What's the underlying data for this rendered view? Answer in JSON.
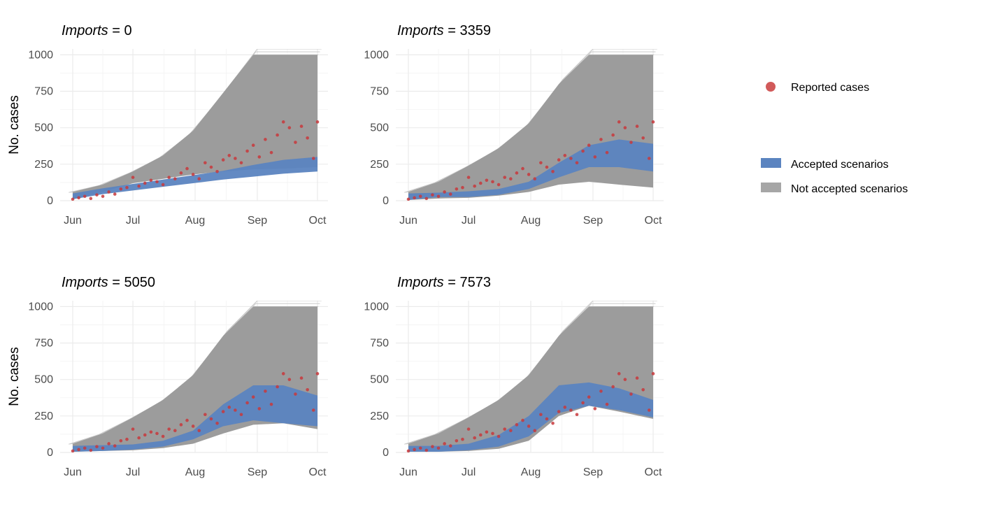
{
  "chart_data": [
    {
      "type": "area",
      "title": "= 0",
      "title_var": "Imports",
      "ylabel": "No. cases",
      "xlabel": "",
      "x_ticks": [
        "Jun",
        "Jul",
        "Aug",
        "Sep",
        "Oct"
      ],
      "ylim": [
        0,
        1000
      ],
      "y_ticks": [
        0,
        250,
        500,
        750,
        1000
      ],
      "grid": true,
      "series": [
        {
          "name": "Not accepted scenarios",
          "type": "band",
          "x": [
            0,
            15,
            30,
            45,
            60,
            75,
            90,
            105,
            122
          ],
          "lower": [
            10,
            60,
            120,
            150,
            180,
            200,
            215,
            220,
            230
          ],
          "upper": [
            60,
            110,
            200,
            310,
            480,
            740,
            1000,
            1000,
            1000
          ]
        },
        {
          "name": "Accepted scenarios",
          "type": "band",
          "x": [
            0,
            15,
            30,
            45,
            60,
            75,
            90,
            105,
            122
          ],
          "lower": [
            10,
            45,
            70,
            95,
            120,
            145,
            165,
            185,
            200
          ],
          "upper": [
            50,
            85,
            115,
            145,
            175,
            205,
            245,
            280,
            300
          ]
        },
        {
          "name": "Reported cases",
          "type": "scatter",
          "x": [
            0,
            3,
            6,
            9,
            12,
            15,
            18,
            21,
            24,
            27,
            30,
            33,
            36,
            39,
            42,
            45,
            48,
            51,
            54,
            57,
            60,
            63,
            66,
            69,
            72,
            75,
            78,
            81,
            84,
            87,
            90,
            93,
            96,
            99,
            102,
            105,
            108,
            111,
            114,
            117,
            120,
            122
          ],
          "y": [
            10,
            20,
            30,
            15,
            40,
            30,
            60,
            45,
            80,
            90,
            160,
            100,
            120,
            140,
            130,
            110,
            160,
            150,
            190,
            220,
            180,
            150,
            260,
            230,
            200,
            280,
            310,
            290,
            260,
            340,
            380,
            300,
            420,
            330,
            450,
            540,
            500,
            400,
            510,
            430,
            290,
            540
          ]
        }
      ]
    },
    {
      "type": "area",
      "title": "= 3359",
      "title_var": "Imports",
      "ylabel": "",
      "xlabel": "",
      "x_ticks": [
        "Jun",
        "Jul",
        "Aug",
        "Sep",
        "Oct"
      ],
      "ylim": [
        0,
        1000
      ],
      "y_ticks": [
        0,
        250,
        500,
        750,
        1000
      ],
      "grid": true,
      "series": [
        {
          "name": "Not accepted scenarios",
          "type": "band",
          "x": [
            0,
            15,
            30,
            45,
            60,
            75,
            90,
            105,
            122
          ],
          "lower": [
            5,
            15,
            20,
            35,
            60,
            110,
            130,
            110,
            90
          ],
          "upper": [
            60,
            130,
            240,
            360,
            530,
            800,
            1000,
            1000,
            1000
          ]
        },
        {
          "name": "Accepted scenarios",
          "type": "band",
          "x": [
            0,
            15,
            30,
            45,
            60,
            75,
            90,
            105,
            122
          ],
          "lower": [
            5,
            25,
            25,
            40,
            80,
            160,
            230,
            230,
            200
          ],
          "upper": [
            50,
            55,
            65,
            80,
            130,
            260,
            380,
            420,
            390
          ]
        },
        {
          "name": "Reported cases",
          "type": "scatter",
          "x": [
            0,
            3,
            6,
            9,
            12,
            15,
            18,
            21,
            24,
            27,
            30,
            33,
            36,
            39,
            42,
            45,
            48,
            51,
            54,
            57,
            60,
            63,
            66,
            69,
            72,
            75,
            78,
            81,
            84,
            87,
            90,
            93,
            96,
            99,
            102,
            105,
            108,
            111,
            114,
            117,
            120,
            122
          ],
          "y": [
            10,
            20,
            30,
            15,
            40,
            30,
            60,
            45,
            80,
            90,
            160,
            100,
            120,
            140,
            130,
            110,
            160,
            150,
            190,
            220,
            180,
            150,
            260,
            230,
            200,
            280,
            310,
            290,
            260,
            340,
            380,
            300,
            420,
            330,
            450,
            540,
            500,
            400,
            510,
            430,
            290,
            540
          ]
        }
      ]
    },
    {
      "type": "area",
      "title": "= 5050",
      "title_var": "Imports",
      "ylabel": "No. cases",
      "xlabel": "",
      "x_ticks": [
        "Jun",
        "Jul",
        "Aug",
        "Sep",
        "Oct"
      ],
      "ylim": [
        0,
        1000
      ],
      "y_ticks": [
        0,
        250,
        500,
        750,
        1000
      ],
      "grid": true,
      "series": [
        {
          "name": "Not accepted scenarios",
          "type": "band",
          "x": [
            0,
            15,
            30,
            45,
            60,
            75,
            90,
            105,
            122
          ],
          "lower": [
            5,
            10,
            15,
            30,
            60,
            130,
            190,
            200,
            160
          ],
          "upper": [
            60,
            130,
            240,
            360,
            530,
            800,
            1000,
            1000,
            1000
          ]
        },
        {
          "name": "Accepted scenarios",
          "type": "band",
          "x": [
            0,
            15,
            30,
            45,
            60,
            75,
            90,
            105,
            122
          ],
          "lower": [
            5,
            10,
            20,
            40,
            90,
            180,
            220,
            200,
            180
          ],
          "upper": [
            45,
            50,
            55,
            80,
            150,
            330,
            460,
            460,
            390
          ]
        },
        {
          "name": "Reported cases",
          "type": "scatter",
          "x": [
            0,
            3,
            6,
            9,
            12,
            15,
            18,
            21,
            24,
            27,
            30,
            33,
            36,
            39,
            42,
            45,
            48,
            51,
            54,
            57,
            60,
            63,
            66,
            69,
            72,
            75,
            78,
            81,
            84,
            87,
            90,
            93,
            96,
            99,
            102,
            105,
            108,
            111,
            114,
            117,
            120,
            122
          ],
          "y": [
            10,
            20,
            30,
            15,
            40,
            30,
            60,
            45,
            80,
            90,
            160,
            100,
            120,
            140,
            130,
            110,
            160,
            150,
            190,
            220,
            180,
            150,
            260,
            230,
            200,
            280,
            310,
            290,
            260,
            340,
            380,
            300,
            420,
            330,
            450,
            540,
            500,
            400,
            510,
            430,
            290,
            540
          ]
        }
      ]
    },
    {
      "type": "area",
      "title": "= 7573",
      "title_var": "Imports",
      "ylabel": "",
      "xlabel": "",
      "x_ticks": [
        "Jun",
        "Jul",
        "Aug",
        "Sep",
        "Oct"
      ],
      "ylim": [
        0,
        1000
      ],
      "y_ticks": [
        0,
        250,
        500,
        750,
        1000
      ],
      "grid": true,
      "series": [
        {
          "name": "Not accepted scenarios",
          "type": "band",
          "x": [
            0,
            15,
            30,
            45,
            60,
            75,
            90,
            105,
            122
          ],
          "lower": [
            5,
            5,
            10,
            25,
            80,
            250,
            320,
            280,
            230
          ],
          "upper": [
            60,
            130,
            240,
            360,
            530,
            800,
            1000,
            1000,
            1000
          ]
        },
        {
          "name": "Accepted scenarios",
          "type": "band",
          "x": [
            0,
            15,
            30,
            45,
            60,
            75,
            90,
            105,
            122
          ],
          "lower": [
            5,
            5,
            15,
            40,
            110,
            270,
            320,
            290,
            240
          ],
          "upper": [
            45,
            45,
            60,
            120,
            250,
            460,
            480,
            440,
            360
          ]
        },
        {
          "name": "Reported cases",
          "type": "scatter",
          "x": [
            0,
            3,
            6,
            9,
            12,
            15,
            18,
            21,
            24,
            27,
            30,
            33,
            36,
            39,
            42,
            45,
            48,
            51,
            54,
            57,
            60,
            63,
            66,
            69,
            72,
            75,
            78,
            81,
            84,
            87,
            90,
            93,
            96,
            99,
            102,
            105,
            108,
            111,
            114,
            117,
            120,
            122
          ],
          "y": [
            10,
            20,
            30,
            15,
            40,
            30,
            60,
            45,
            80,
            90,
            160,
            100,
            120,
            140,
            130,
            110,
            160,
            150,
            190,
            220,
            180,
            150,
            260,
            230,
            200,
            280,
            310,
            290,
            260,
            340,
            380,
            300,
            420,
            330,
            450,
            540,
            500,
            400,
            510,
            430,
            290,
            540
          ]
        }
      ]
    }
  ],
  "legend": {
    "items": [
      {
        "label": "Reported cases",
        "kind": "point",
        "color": "#d15a5a"
      },
      {
        "label": "Accepted scenarios",
        "kind": "fill",
        "color": "#5b84c0"
      },
      {
        "label": "Not accepted scenarios",
        "kind": "fill",
        "color": "#a6a6a6"
      }
    ]
  },
  "colors": {
    "not_accepted": "#9c9c9c",
    "accepted": "#5b84c0",
    "reported": "#c8383c",
    "grid": "#ebebeb"
  }
}
